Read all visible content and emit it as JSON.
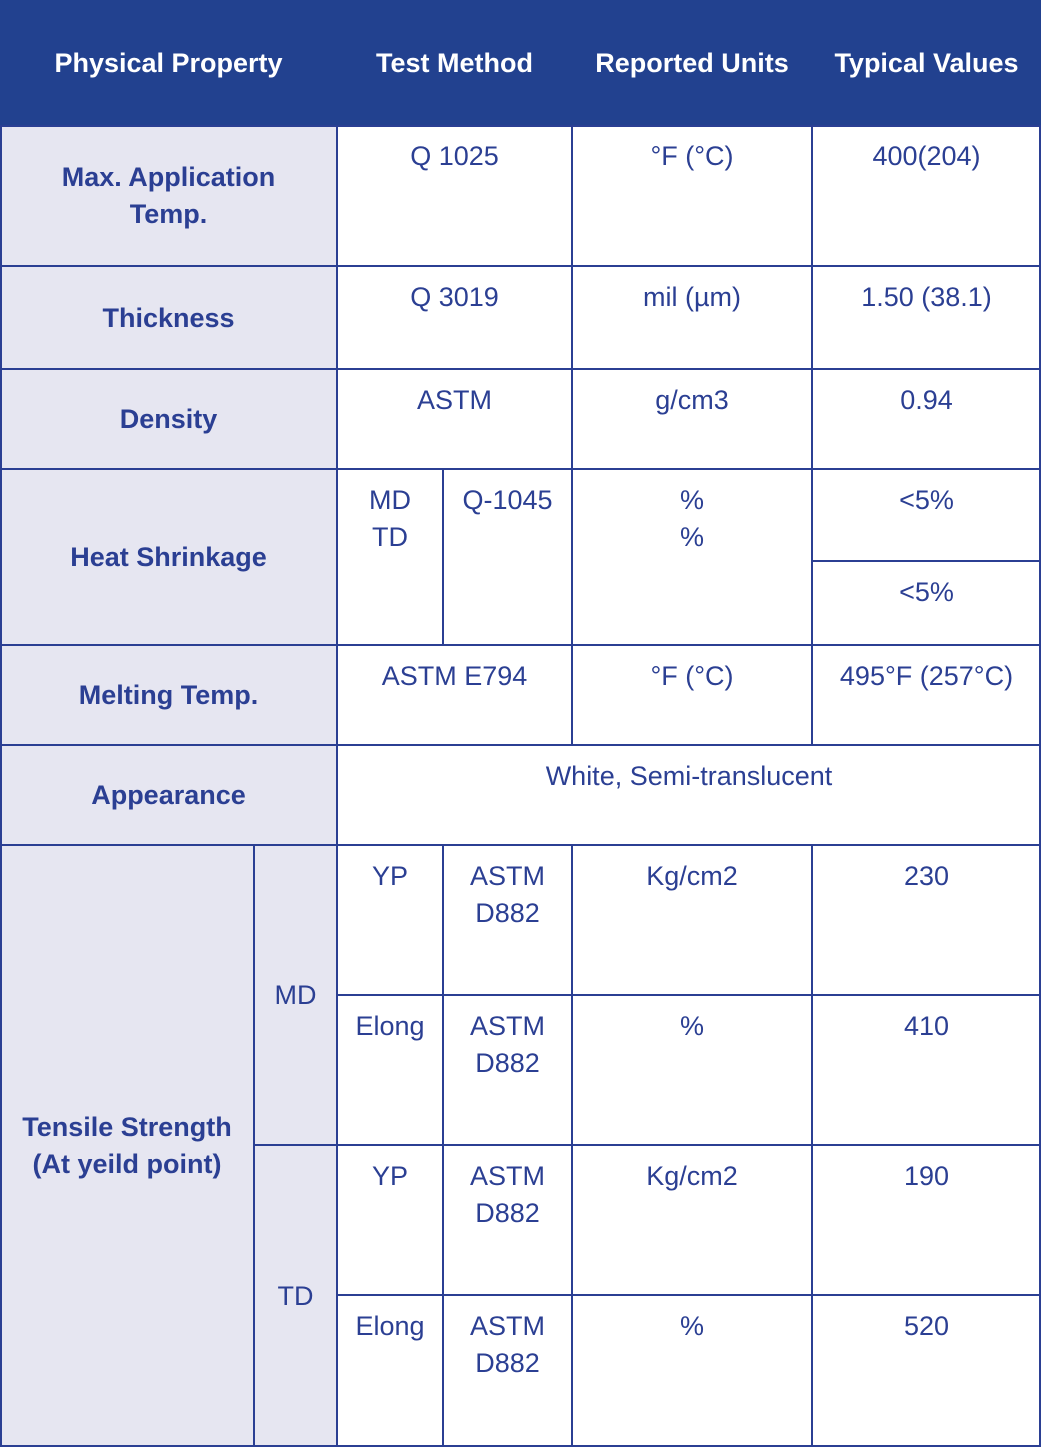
{
  "header": {
    "physical_property": "Physical Property",
    "test_method": "Test Method",
    "reported_units": "Reported Units",
    "typical_values": "Typical Values"
  },
  "rows": {
    "max_temp": {
      "property_line1": "Max. Application",
      "property_line2": "Temp.",
      "method": "Q 1025",
      "units": "°F (°C)",
      "value": "400(204)"
    },
    "thickness": {
      "property": "Thickness",
      "method": "Q 3019",
      "units": "mil (µm)",
      "value": "1.50 (38.1)"
    },
    "density": {
      "property": "Density",
      "method": "ASTM",
      "units": "g/cm3",
      "value": "0.94"
    },
    "heat_shrinkage": {
      "property": "Heat Shrinkage",
      "dir_md": "MD",
      "dir_td": "TD",
      "method": "Q-1045",
      "units_md": "%",
      "units_td": "%",
      "value_md": "<5%",
      "value_td": "<5%"
    },
    "melting": {
      "property": "Melting Temp.",
      "method": "ASTM E794",
      "units": "°F (°C)",
      "value": "495°F (257°C)"
    },
    "appearance": {
      "property": "Appearance",
      "value": "White, Semi-translucent"
    },
    "tensile": {
      "property_line1": "Tensile Strength",
      "property_line2": "(At yeild point)",
      "md": {
        "label": "MD",
        "yp": {
          "label": "YP",
          "method_line1": "ASTM",
          "method_line2": "D882",
          "units": "Kg/cm2",
          "value": "230"
        },
        "elong": {
          "label": "Elong",
          "method_line1": "ASTM",
          "method_line2": "D882",
          "units": "%",
          "value": "410"
        }
      },
      "td": {
        "label": "TD",
        "yp": {
          "label": "YP",
          "method_line1": "ASTM",
          "method_line2": "D882",
          "units": "Kg/cm2",
          "value": "190"
        },
        "elong": {
          "label": "Elong",
          "method_line1": "ASTM",
          "method_line2": "D882",
          "units": "%",
          "value": "520"
        }
      }
    }
  },
  "colors": {
    "header_background": "#22418f",
    "header_text": "#ffffff",
    "body_text": "#2b3f93",
    "property_cell_background": "#e6e6f1",
    "grid_lines": "#2b3f93"
  }
}
